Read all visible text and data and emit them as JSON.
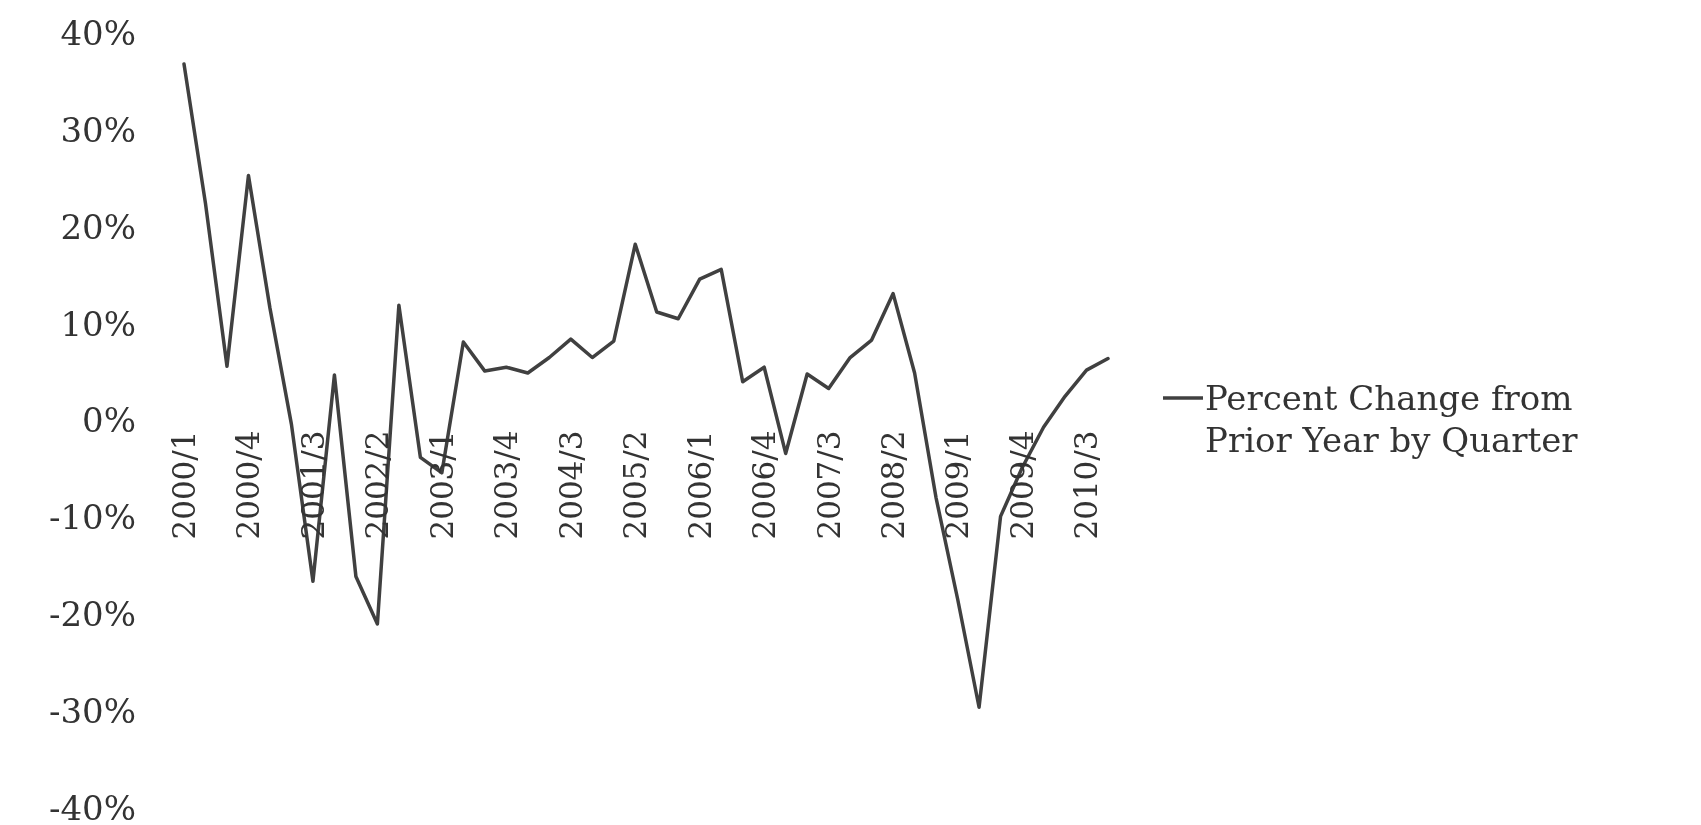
{
  "chart_data": {
    "type": "line",
    "categories": [
      "2000/1",
      null,
      null,
      "2000/4",
      null,
      null,
      "2001/3",
      null,
      null,
      "2002/2",
      null,
      null,
      "2003/1",
      null,
      null,
      "2003/4",
      null,
      null,
      "2004/3",
      null,
      null,
      "2005/2",
      null,
      null,
      "2006/1",
      null,
      null,
      "2006/4",
      null,
      null,
      "2007/3",
      null,
      null,
      "2008/2",
      null,
      null,
      "2009/1",
      null,
      null,
      "2009/4",
      null,
      null,
      "2010/3",
      null
    ],
    "series": [
      {
        "name": "Percent Change from Prior Year by Quarter",
        "color": "#404040",
        "values": [
          36.8,
          22.4,
          5.6,
          25.3,
          11.6,
          -0.4,
          -16.6,
          4.7,
          -16.1,
          -21.0,
          11.9,
          -3.8,
          -5.4,
          8.1,
          5.1,
          5.5,
          4.9,
          6.5,
          8.4,
          6.5,
          8.2,
          18.2,
          11.2,
          10.5,
          14.6,
          15.6,
          4.0,
          5.5,
          -3.4,
          4.8,
          3.3,
          6.5,
          8.3,
          13.1,
          4.9,
          -8.0,
          -18.4,
          -29.6,
          -9.9,
          -4.9,
          -0.7,
          2.5,
          5.2,
          6.4
        ]
      }
    ],
    "ylim": [
      -40,
      40
    ],
    "yticks": [
      {
        "value": -40,
        "label": "-40%"
      },
      {
        "value": -30,
        "label": "-30%"
      },
      {
        "value": -20,
        "label": "-20%"
      },
      {
        "value": -10,
        "label": "-10%"
      },
      {
        "value": 0,
        "label": "0%"
      },
      {
        "value": 10,
        "label": "10%"
      },
      {
        "value": 20,
        "label": "20%"
      },
      {
        "value": 30,
        "label": "30%"
      },
      {
        "value": 40,
        "label": "40%"
      }
    ],
    "legend": "right",
    "marker": "none",
    "line_style": "solid"
  }
}
